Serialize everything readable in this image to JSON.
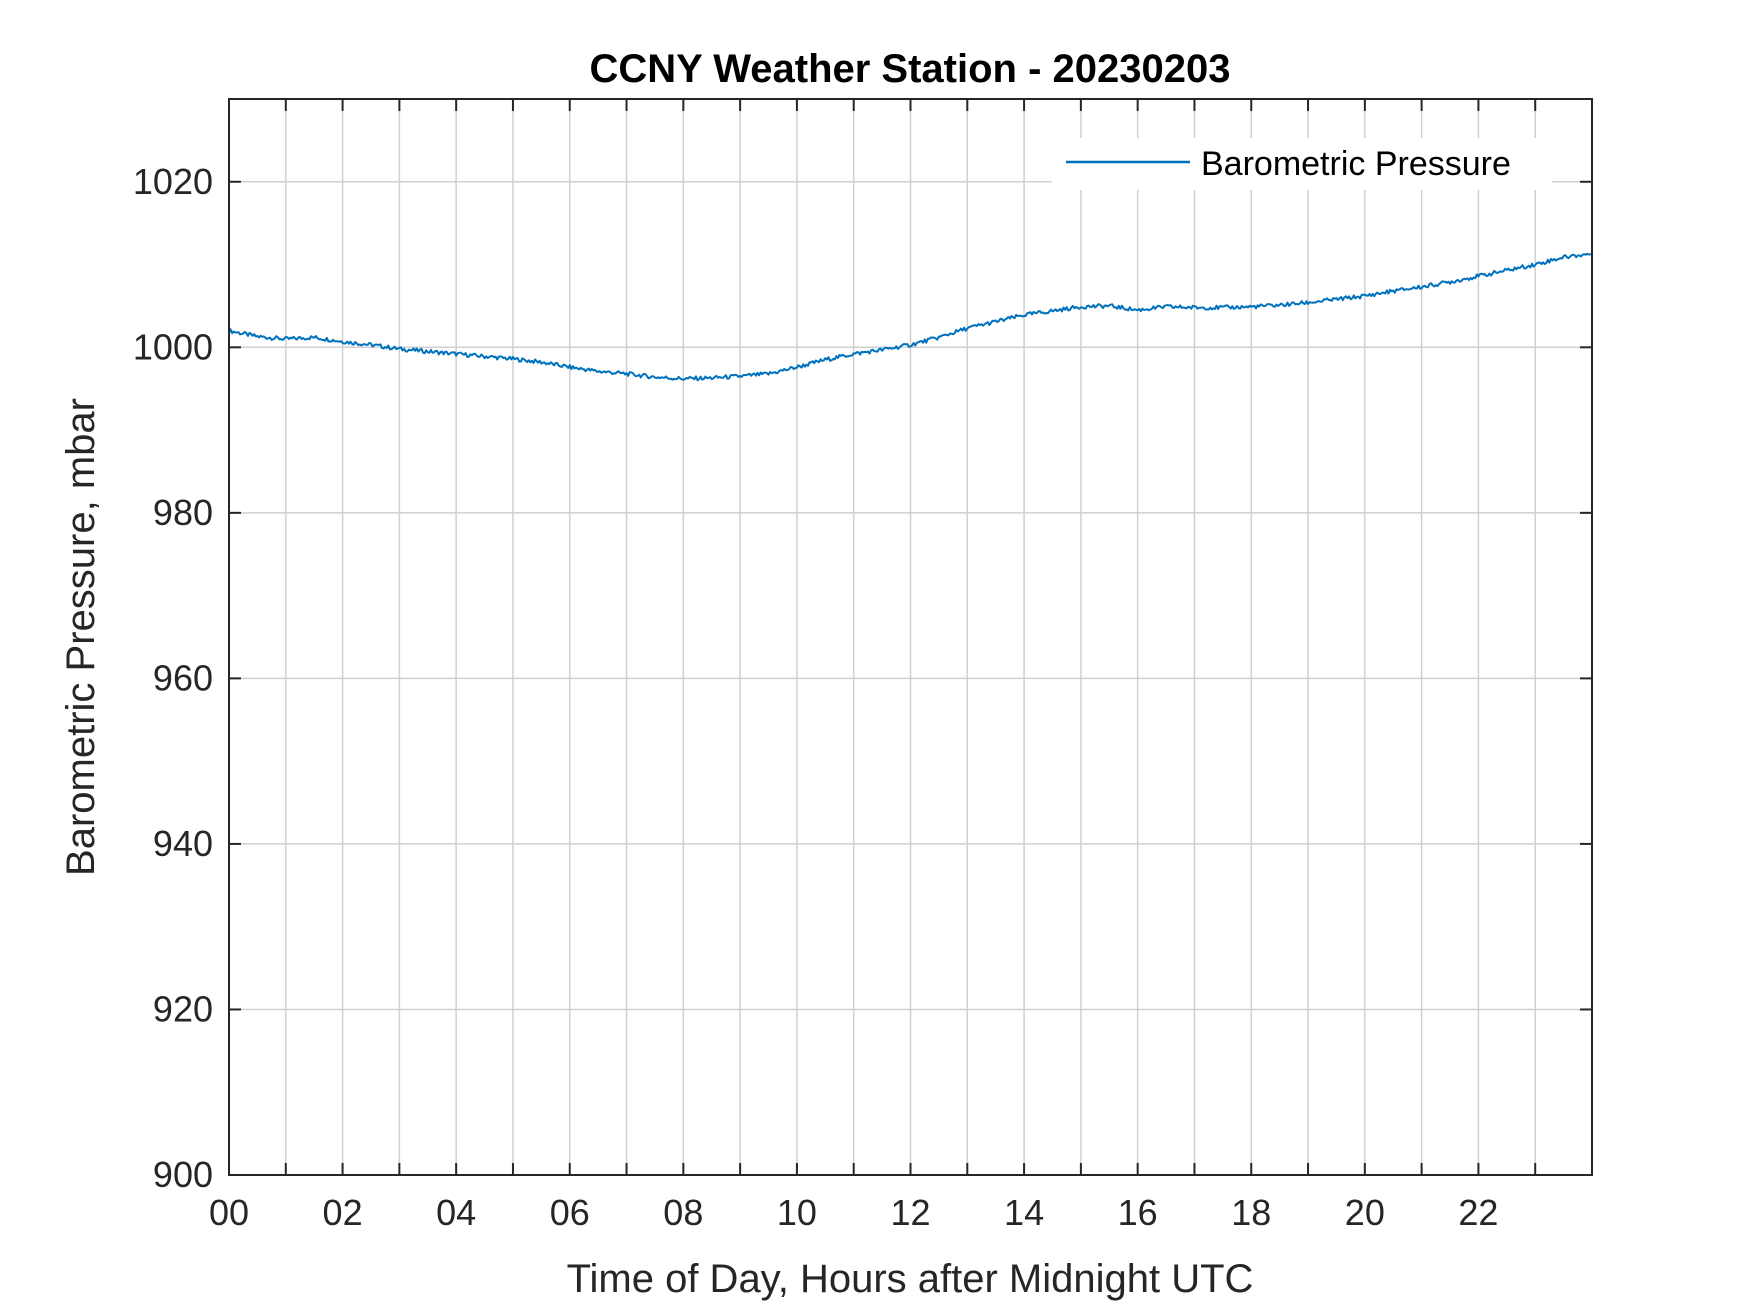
{
  "chart_data": {
    "type": "line",
    "title": "CCNY Weather Station - 20230203",
    "xlabel": "Time of Day, Hours after Midnight UTC",
    "ylabel": "Barometric Pressure, mbar",
    "xlim": [
      0,
      24
    ],
    "ylim": [
      900,
      1030
    ],
    "x_ticks": [
      0,
      2,
      4,
      6,
      8,
      10,
      12,
      14,
      16,
      18,
      20,
      22
    ],
    "x_tick_labels": [
      "00",
      "02",
      "04",
      "06",
      "08",
      "10",
      "12",
      "14",
      "16",
      "18",
      "20",
      "22"
    ],
    "x_minor_ticks": [
      1,
      3,
      5,
      7,
      9,
      11,
      13,
      15,
      17,
      19,
      21,
      23
    ],
    "y_ticks": [
      900,
      920,
      940,
      960,
      980,
      1000,
      1020
    ],
    "y_tick_labels": [
      "900",
      "920",
      "940",
      "960",
      "980",
      "1000",
      "1020"
    ],
    "grid": true,
    "legend_position": "top-right",
    "series": [
      {
        "name": "Barometric Pressure",
        "color": "#0072BD",
        "x": [
          0,
          0.5,
          1,
          1.5,
          2,
          2.5,
          3,
          3.5,
          4,
          4.5,
          5,
          5.5,
          6,
          6.5,
          7,
          7.5,
          8,
          8.5,
          9,
          9.5,
          10,
          10.5,
          11,
          11.5,
          12,
          12.5,
          13,
          13.5,
          14,
          14.5,
          15,
          15.5,
          16,
          16.5,
          17,
          17.5,
          18,
          18.5,
          19,
          19.5,
          20,
          20.5,
          21,
          21.5,
          22,
          22.5,
          23,
          23.5,
          24
        ],
        "y": [
          1002.0,
          1001.3,
          1001.0,
          1001.2,
          1000.7,
          1000.3,
          999.8,
          999.5,
          999.2,
          998.9,
          998.6,
          998.2,
          997.6,
          997.1,
          996.8,
          996.4,
          996.2,
          996.3,
          996.5,
          996.8,
          997.6,
          998.5,
          999.2,
          999.7,
          1000.3,
          1001.2,
          1002.3,
          1003.1,
          1003.9,
          1004.4,
          1004.9,
          1005.0,
          1004.5,
          1004.9,
          1004.8,
          1004.8,
          1004.9,
          1005.1,
          1005.4,
          1005.8,
          1006.2,
          1006.8,
          1007.3,
          1007.9,
          1008.6,
          1009.3,
          1010.0,
          1010.9,
          1011.3
        ]
      }
    ]
  }
}
